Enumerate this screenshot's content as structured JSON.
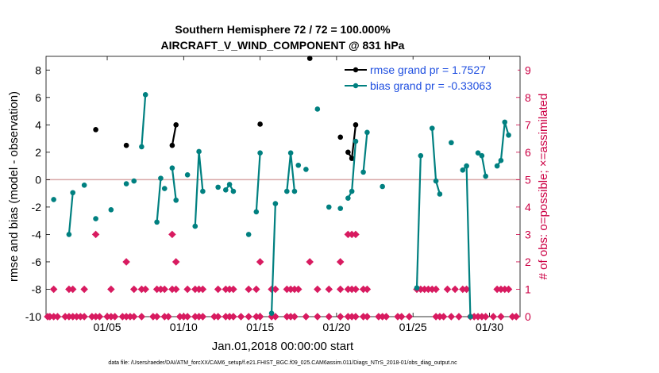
{
  "chart_data": {
    "type": "line",
    "title": "Southern Hemisphere 72 / 72 = 100.000%",
    "subtitle": "AIRCRAFT_V_WIND_COMPONENT @ 831 hPa",
    "xlabel": "Jan.01,2018 00:00:00 start",
    "ylabel": "rmse and bias (model - observation)",
    "ylabel_right": "# of obs: o=possible; ×=assimilated",
    "xlim": [
      1,
      32
    ],
    "ylim": [
      -10,
      9
    ],
    "ylim_right": [
      0,
      9.5
    ],
    "x_ticks": [
      {
        "x": 5,
        "label": "01/05"
      },
      {
        "x": 10,
        "label": "01/10"
      },
      {
        "x": 15,
        "label": "01/15"
      },
      {
        "x": 20,
        "label": "01/20"
      },
      {
        "x": 25,
        "label": "01/25"
      },
      {
        "x": 30,
        "label": "01/30"
      }
    ],
    "y_ticks": [
      8,
      6,
      4,
      2,
      0,
      -2,
      -4,
      -6,
      -8,
      -10
    ],
    "y_ticks_right": [
      9,
      8,
      7,
      6,
      5,
      4,
      3,
      2,
      1,
      0
    ],
    "zero_line": 0,
    "colors": {
      "rmse": "#000000",
      "bias": "#008080",
      "obs": "#d81b60",
      "zero": "#d8a8a8",
      "axis_right": "#cc0044",
      "legend_text": "#1f4fe0"
    },
    "series": [
      {
        "name": "rmse",
        "legend": "rmse grand pr = 1.7527",
        "segments": [
          [
            [
              4.25,
              3.65
            ]
          ],
          [
            [
              6.25,
              2.5
            ]
          ],
          [
            [
              9.25,
              2.5
            ],
            [
              9.5,
              4.0
            ]
          ],
          [
            [
              15.0,
              4.05
            ]
          ],
          [
            [
              18.25,
              8.85
            ]
          ],
          [
            [
              20.25,
              3.1
            ]
          ],
          [
            [
              20.75,
              2.0
            ],
            [
              21.0,
              1.55
            ],
            [
              21.25,
              4.0
            ]
          ]
        ]
      },
      {
        "name": "bias",
        "legend": "bias grand pr = -0.33063",
        "segments": [
          [
            [
              1.5,
              -1.45
            ]
          ],
          [
            [
              2.5,
              -4.0
            ],
            [
              2.75,
              -0.95
            ]
          ],
          [
            [
              3.5,
              -0.4
            ]
          ],
          [
            [
              4.25,
              -2.85
            ]
          ],
          [
            [
              5.25,
              -2.2
            ]
          ],
          [
            [
              6.25,
              -0.3
            ]
          ],
          [
            [
              6.75,
              -0.1
            ]
          ],
          [
            [
              7.25,
              2.4
            ],
            [
              7.5,
              6.2
            ]
          ],
          [
            [
              8.25,
              -3.1
            ],
            [
              8.5,
              0.1
            ]
          ],
          [
            [
              8.75,
              -0.65
            ]
          ],
          [
            [
              9.25,
              0.85
            ],
            [
              9.5,
              -1.5
            ]
          ],
          [
            [
              10.25,
              0.35
            ]
          ],
          [
            [
              10.75,
              -3.4
            ],
            [
              11.0,
              2.05
            ],
            [
              11.25,
              -0.85
            ]
          ],
          [
            [
              12.25,
              -0.55
            ]
          ],
          [
            [
              12.75,
              -0.75
            ],
            [
              13.0,
              -0.35
            ],
            [
              13.25,
              -0.85
            ]
          ],
          [
            [
              14.25,
              -4.0
            ]
          ],
          [
            [
              14.75,
              -2.35
            ],
            [
              15.0,
              1.95
            ]
          ],
          [
            [
              15.75,
              -9.75
            ],
            [
              16.0,
              -1.75
            ]
          ],
          [
            [
              16.75,
              -0.85
            ],
            [
              17.0,
              1.95
            ],
            [
              17.25,
              -0.85
            ]
          ],
          [
            [
              17.5,
              1.05
            ]
          ],
          [
            [
              18.0,
              0.75
            ]
          ],
          [
            [
              18.75,
              5.15
            ]
          ],
          [
            [
              19.5,
              -2.0
            ]
          ],
          [
            [
              20.25,
              -2.1
            ]
          ],
          [
            [
              20.75,
              -1.35
            ],
            [
              21.0,
              -0.85
            ],
            [
              21.25,
              2.8
            ]
          ],
          [
            [
              21.75,
              0.55
            ],
            [
              22.0,
              3.45
            ]
          ],
          [
            [
              23.0,
              -0.5
            ]
          ],
          [
            [
              25.25,
              -7.9
            ],
            [
              25.5,
              1.75
            ]
          ],
          [
            [
              26.25,
              3.75
            ],
            [
              26.5,
              -0.1
            ],
            [
              26.75,
              -1.05
            ]
          ],
          [
            [
              27.5,
              2.7
            ]
          ],
          [
            [
              28.25,
              0.7
            ],
            [
              28.5,
              1.0
            ],
            [
              28.75,
              -10.0
            ]
          ],
          [
            [
              29.25,
              1.95
            ],
            [
              29.5,
              1.75
            ],
            [
              29.75,
              0.25
            ]
          ],
          [
            [
              30.5,
              1.0
            ],
            [
              30.75,
              1.4
            ],
            [
              31.0,
              4.2
            ],
            [
              31.25,
              3.25
            ]
          ]
        ]
      }
    ],
    "obs_possible": [
      {
        "x": 1.0,
        "n": 0
      },
      {
        "x": 1.25,
        "n": 0
      },
      {
        "x": 1.5,
        "n": 0
      },
      {
        "x": 1.5,
        "n": 1
      },
      {
        "x": 1.75,
        "n": 0
      },
      {
        "x": 2.25,
        "n": 0
      },
      {
        "x": 2.5,
        "n": 0
      },
      {
        "x": 2.5,
        "n": 1
      },
      {
        "x": 2.75,
        "n": 0
      },
      {
        "x": 2.75,
        "n": 1
      },
      {
        "x": 3.0,
        "n": 0
      },
      {
        "x": 3.25,
        "n": 0
      },
      {
        "x": 3.5,
        "n": 0
      },
      {
        "x": 3.5,
        "n": 1
      },
      {
        "x": 4.0,
        "n": 0
      },
      {
        "x": 4.25,
        "n": 0
      },
      {
        "x": 4.25,
        "n": 3
      },
      {
        "x": 4.5,
        "n": 0
      },
      {
        "x": 5.0,
        "n": 0
      },
      {
        "x": 5.25,
        "n": 0
      },
      {
        "x": 5.25,
        "n": 1
      },
      {
        "x": 5.5,
        "n": 0
      },
      {
        "x": 6.0,
        "n": 0
      },
      {
        "x": 6.25,
        "n": 0
      },
      {
        "x": 6.25,
        "n": 2
      },
      {
        "x": 6.5,
        "n": 0
      },
      {
        "x": 6.75,
        "n": 0
      },
      {
        "x": 6.75,
        "n": 1
      },
      {
        "x": 7.25,
        "n": 0
      },
      {
        "x": 7.25,
        "n": 1
      },
      {
        "x": 7.5,
        "n": 1
      },
      {
        "x": 8.0,
        "n": 0
      },
      {
        "x": 8.25,
        "n": 0
      },
      {
        "x": 8.25,
        "n": 1
      },
      {
        "x": 8.5,
        "n": 1
      },
      {
        "x": 8.75,
        "n": 0
      },
      {
        "x": 8.75,
        "n": 1
      },
      {
        "x": 9.0,
        "n": 0
      },
      {
        "x": 9.25,
        "n": 1
      },
      {
        "x": 9.5,
        "n": 1
      },
      {
        "x": 9.25,
        "n": 3
      },
      {
        "x": 9.5,
        "n": 2
      },
      {
        "x": 9.75,
        "n": 0
      },
      {
        "x": 10.0,
        "n": 0
      },
      {
        "x": 10.25,
        "n": 0
      },
      {
        "x": 10.25,
        "n": 1
      },
      {
        "x": 10.75,
        "n": 0
      },
      {
        "x": 10.75,
        "n": 1
      },
      {
        "x": 11.0,
        "n": 0
      },
      {
        "x": 11.0,
        "n": 1
      },
      {
        "x": 11.25,
        "n": 0
      },
      {
        "x": 11.25,
        "n": 1
      },
      {
        "x": 12.0,
        "n": 0
      },
      {
        "x": 12.25,
        "n": 0
      },
      {
        "x": 12.25,
        "n": 1
      },
      {
        "x": 12.75,
        "n": 0
      },
      {
        "x": 12.75,
        "n": 1
      },
      {
        "x": 13.0,
        "n": 0
      },
      {
        "x": 13.0,
        "n": 1
      },
      {
        "x": 13.25,
        "n": 0
      },
      {
        "x": 13.25,
        "n": 1
      },
      {
        "x": 13.75,
        "n": 0
      },
      {
        "x": 14.25,
        "n": 0
      },
      {
        "x": 14.25,
        "n": 1
      },
      {
        "x": 14.75,
        "n": 0
      },
      {
        "x": 14.75,
        "n": 1
      },
      {
        "x": 15.0,
        "n": 2
      },
      {
        "x": 15.0,
        "n": 0
      },
      {
        "x": 15.75,
        "n": 0
      },
      {
        "x": 15.75,
        "n": 1
      },
      {
        "x": 16.0,
        "n": 0
      },
      {
        "x": 16.0,
        "n": 1
      },
      {
        "x": 16.75,
        "n": 0
      },
      {
        "x": 16.75,
        "n": 1
      },
      {
        "x": 17.0,
        "n": 0
      },
      {
        "x": 17.0,
        "n": 1
      },
      {
        "x": 17.25,
        "n": 0
      },
      {
        "x": 17.25,
        "n": 1
      },
      {
        "x": 17.5,
        "n": 1
      },
      {
        "x": 18.0,
        "n": 0
      },
      {
        "x": 18.25,
        "n": 2
      },
      {
        "x": 18.75,
        "n": 0
      },
      {
        "x": 18.75,
        "n": 1
      },
      {
        "x": 19.5,
        "n": 0
      },
      {
        "x": 19.5,
        "n": 1
      },
      {
        "x": 20.25,
        "n": 0
      },
      {
        "x": 20.25,
        "n": 1
      },
      {
        "x": 20.25,
        "n": 2
      },
      {
        "x": 20.75,
        "n": 0
      },
      {
        "x": 20.75,
        "n": 1
      },
      {
        "x": 20.75,
        "n": 3
      },
      {
        "x": 21.0,
        "n": 0
      },
      {
        "x": 21.0,
        "n": 1
      },
      {
        "x": 21.0,
        "n": 3
      },
      {
        "x": 21.25,
        "n": 0
      },
      {
        "x": 21.25,
        "n": 1
      },
      {
        "x": 21.25,
        "n": 3
      },
      {
        "x": 21.75,
        "n": 0
      },
      {
        "x": 21.75,
        "n": 1
      },
      {
        "x": 22.0,
        "n": 0
      },
      {
        "x": 22.0,
        "n": 1
      },
      {
        "x": 22.75,
        "n": 0
      },
      {
        "x": 23.0,
        "n": 0
      },
      {
        "x": 23.25,
        "n": 0
      },
      {
        "x": 24.0,
        "n": 0
      },
      {
        "x": 24.25,
        "n": 0
      },
      {
        "x": 24.75,
        "n": 0
      },
      {
        "x": 25.25,
        "n": 1
      },
      {
        "x": 25.5,
        "n": 1
      },
      {
        "x": 25.75,
        "n": 1
      },
      {
        "x": 26.0,
        "n": 1
      },
      {
        "x": 26.25,
        "n": 1
      },
      {
        "x": 26.5,
        "n": 0
      },
      {
        "x": 26.5,
        "n": 1
      },
      {
        "x": 26.75,
        "n": 0
      },
      {
        "x": 27.0,
        "n": 0
      },
      {
        "x": 27.25,
        "n": 1
      },
      {
        "x": 27.5,
        "n": 0
      },
      {
        "x": 27.75,
        "n": 1
      },
      {
        "x": 28.0,
        "n": 0
      },
      {
        "x": 28.25,
        "n": 1
      },
      {
        "x": 28.5,
        "n": 1
      },
      {
        "x": 28.75,
        "n": 0
      },
      {
        "x": 29.0,
        "n": 0
      },
      {
        "x": 29.25,
        "n": 0
      },
      {
        "x": 29.5,
        "n": 0
      },
      {
        "x": 29.75,
        "n": 0
      },
      {
        "x": 30.25,
        "n": 0
      },
      {
        "x": 30.5,
        "n": 1
      },
      {
        "x": 30.75,
        "n": 0
      },
      {
        "x": 30.75,
        "n": 1
      },
      {
        "x": 31.0,
        "n": 1
      },
      {
        "x": 31.25,
        "n": 1
      },
      {
        "x": 31.5,
        "n": 0
      },
      {
        "x": 31.75,
        "n": 0
      }
    ]
  },
  "footer": {
    "data_file": "data file: /Users/raeder/DAI/ATM_forcXX/CAM6_setup/f.e21.FHIST_BGC.f09_025.CAM6assim.011/Diags_NTrS_2018-01/obs_diag_output.nc"
  }
}
